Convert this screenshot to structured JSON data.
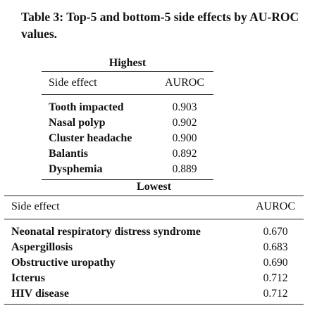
{
  "caption": "Table 3: Top-5 and bottom-5 side effects by AU-ROC values.",
  "highest": {
    "heading": "Highest",
    "columns": [
      "Side effect",
      "AUROC"
    ],
    "rows": [
      {
        "name": "Tooth impacted",
        "auroc": "0.903"
      },
      {
        "name": "Nasal polyp",
        "auroc": "0.902"
      },
      {
        "name": "Cluster headache",
        "auroc": "0.900"
      },
      {
        "name": "Balantis",
        "auroc": "0.892"
      },
      {
        "name": "Dysphemia",
        "auroc": "0.889"
      }
    ]
  },
  "lowest": {
    "heading": "Lowest",
    "columns": [
      "Side effect",
      "AUROC"
    ],
    "rows": [
      {
        "name": "Neonatal respiratory distress syndrome",
        "auroc": "0.670"
      },
      {
        "name": "Aspergillosis",
        "auroc": "0.683"
      },
      {
        "name": "Obstructive uropathy",
        "auroc": "0.690"
      },
      {
        "name": "Icterus",
        "auroc": "0.712"
      },
      {
        "name": "HIV disease",
        "auroc": "0.712"
      }
    ]
  }
}
